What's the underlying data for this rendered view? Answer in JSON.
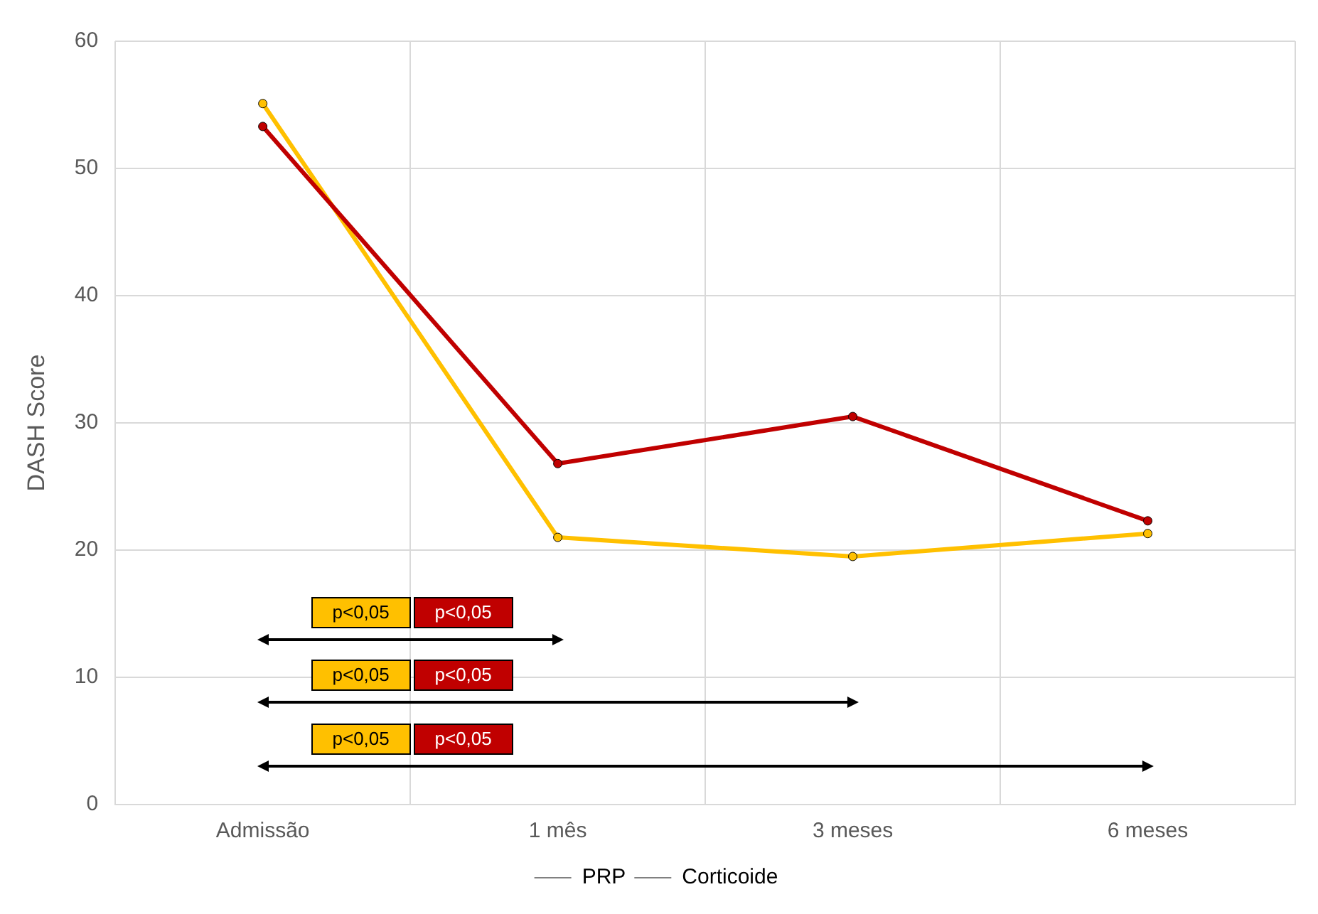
{
  "chart_data": {
    "type": "line",
    "ylabel": "DASH Score",
    "categories": [
      "Admissão",
      "1 mês",
      "3 meses",
      "6 meses"
    ],
    "series": [
      {
        "name": "PRP",
        "color": "#c00000",
        "values": [
          53.3,
          26.8,
          30.5,
          22.3
        ]
      },
      {
        "name": "Corticoide",
        "color": "#ffc000",
        "values": [
          55.1,
          21.0,
          19.5,
          21.3
        ]
      }
    ],
    "ylim": [
      0,
      60
    ],
    "yticks": [
      0,
      10,
      20,
      30,
      40,
      50,
      60
    ],
    "grid": true,
    "legend": "bottom",
    "marker": "circle",
    "line_style": "solid",
    "annotations": [
      "p<0,05",
      "p<0,05",
      "p<0,05",
      "p<0,05",
      "p<0,05",
      "p<0,05"
    ]
  }
}
